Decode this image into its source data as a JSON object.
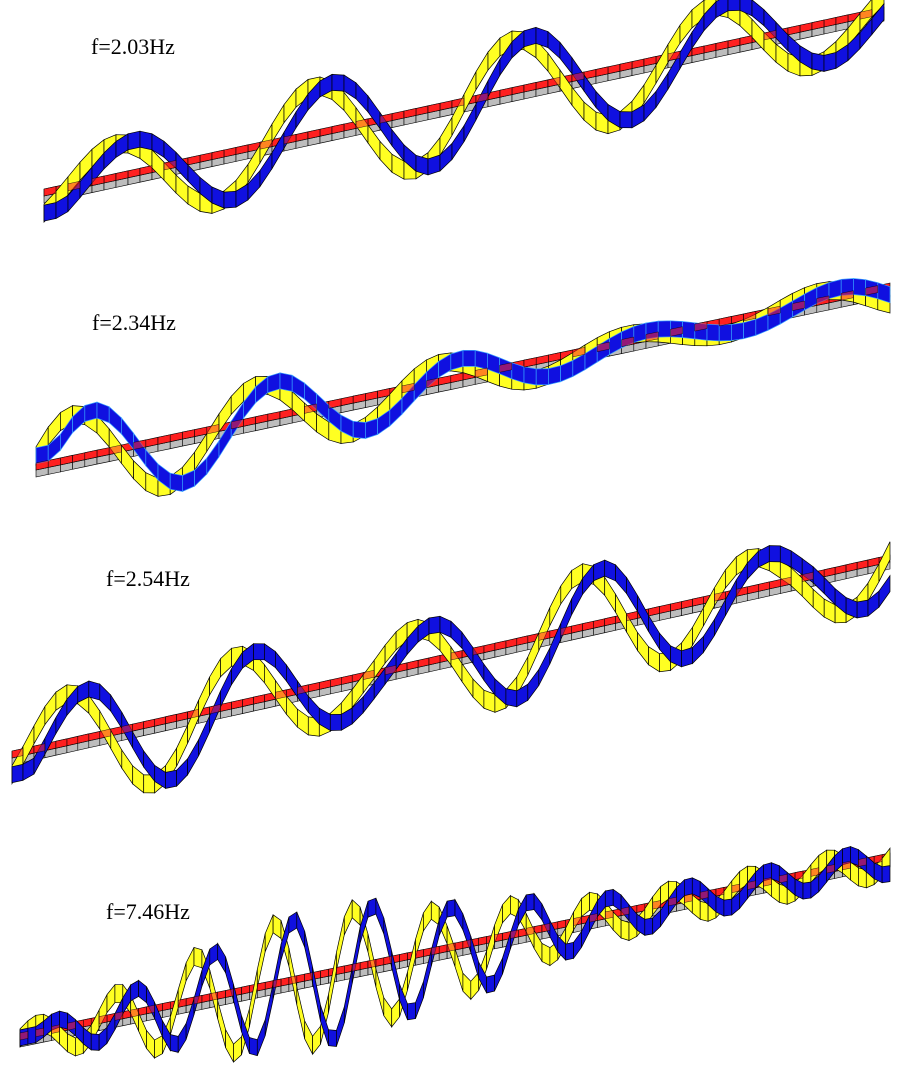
{
  "figure": {
    "panels": [
      {
        "label": "f=2.03Hz"
      },
      {
        "label": "f=2.34Hz"
      },
      {
        "label": "f=2.54Hz"
      },
      {
        "label": "f=7.46Hz"
      }
    ]
  },
  "colors": {
    "deck_top": "#ff2020",
    "deck_under": "#bdbdbd",
    "ribbon_front": "#ffff22",
    "ribbon_back": "#1010e0",
    "ribbon_back_edge": "#35a0ff",
    "edge": "#000000"
  }
}
